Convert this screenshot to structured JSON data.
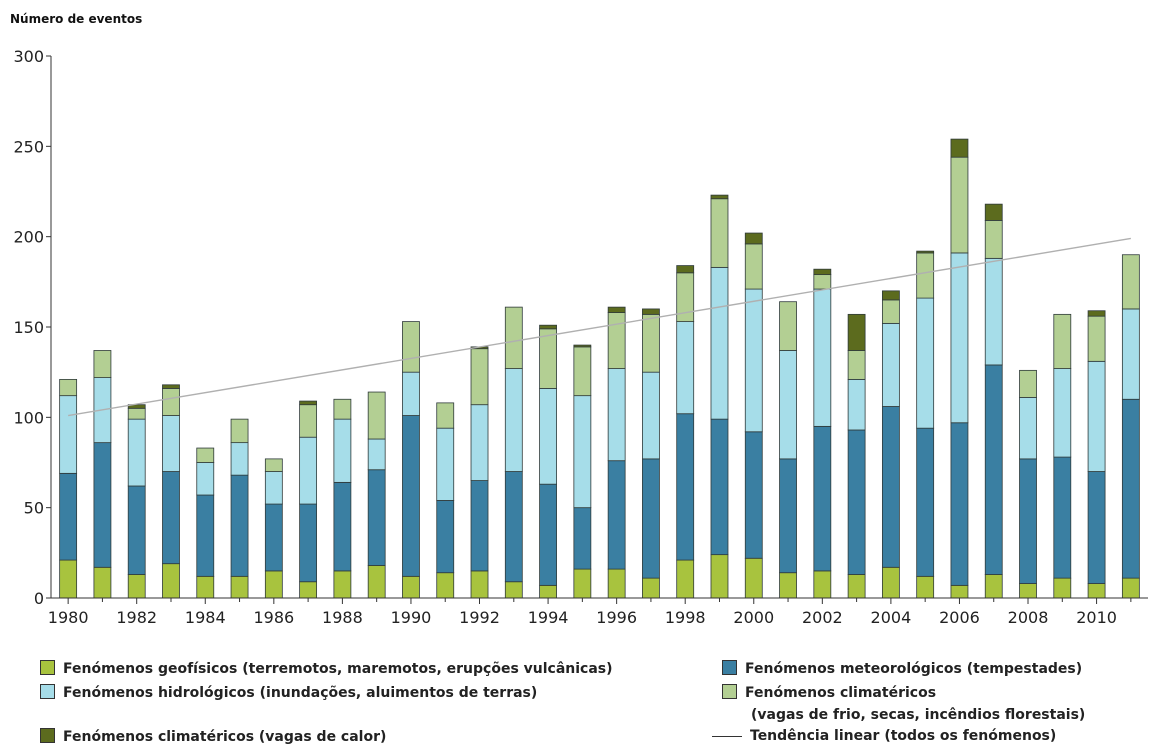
{
  "chart_data": {
    "type": "bar",
    "stacked": true,
    "title": "Número de eventos",
    "ylim": [
      0,
      300
    ],
    "yticks": [
      "0",
      "50",
      "100",
      "150",
      "200",
      "250",
      "300"
    ],
    "categories": [
      "1980",
      "1981",
      "1982",
      "1983",
      "1984",
      "1985",
      "1986",
      "1987",
      "1988",
      "1989",
      "1990",
      "1991",
      "1992",
      "1993",
      "1994",
      "1995",
      "1996",
      "1997",
      "1998",
      "1999",
      "2000",
      "2001",
      "2002",
      "2003",
      "2004",
      "2005",
      "2006",
      "2007",
      "2008",
      "2009",
      "2010",
      "2011"
    ],
    "xtick_labels": [
      "1980",
      "",
      "1982",
      "",
      "1984",
      "",
      "1986",
      "",
      "1988",
      "",
      "1990",
      "",
      "1992",
      "",
      "1994",
      "",
      "1996",
      "",
      "1998",
      "",
      "2000",
      "",
      "2002",
      "",
      "2004",
      "",
      "2006",
      "",
      "2008",
      "",
      "2010",
      ""
    ],
    "series": [
      {
        "name": "Fenómenos geofísicos (terremotos, maremotos, erupções vulcânicas)",
        "color": "#a8c33e",
        "values": [
          21,
          17,
          13,
          19,
          12,
          12,
          15,
          9,
          15,
          18,
          12,
          14,
          15,
          9,
          7,
          16,
          16,
          11,
          21,
          24,
          22,
          14,
          15,
          13,
          17,
          12,
          7,
          13,
          8,
          11,
          8,
          11
        ]
      },
      {
        "name": "Fenómenos meteorológicos (tempestades)",
        "color": "#3a7fa2",
        "values": [
          48,
          69,
          49,
          51,
          45,
          56,
          37,
          43,
          49,
          53,
          89,
          40,
          50,
          61,
          56,
          34,
          60,
          66,
          81,
          75,
          70,
          63,
          80,
          80,
          89,
          82,
          90,
          116,
          69,
          67,
          62,
          99
        ]
      },
      {
        "name": "Fenómenos hidrológicos (inundações, aluimentos de terras)",
        "color": "#a6dde9",
        "values": [
          43,
          36,
          37,
          31,
          18,
          18,
          18,
          37,
          35,
          17,
          24,
          40,
          42,
          57,
          53,
          62,
          51,
          48,
          51,
          84,
          79,
          60,
          76,
          28,
          46,
          72,
          94,
          59,
          34,
          49,
          61,
          50
        ]
      },
      {
        "name": "Fenómenos climatéricos (vagas de frio, secas, incêndios florestais)",
        "color": "#b3cf93",
        "values": [
          9,
          15,
          6,
          15,
          8,
          13,
          7,
          18,
          11,
          26,
          28,
          14,
          31,
          34,
          33,
          27,
          31,
          32,
          27,
          38,
          25,
          27,
          8,
          16,
          13,
          25,
          53,
          21,
          15,
          30,
          25,
          30
        ]
      },
      {
        "name": "Fenómenos climatéricos (vagas de calor)",
        "color": "#5c6b1e",
        "values": [
          0,
          0,
          2,
          2,
          0,
          0,
          0,
          2,
          0,
          0,
          0,
          0,
          1,
          0,
          2,
          1,
          3,
          3,
          4,
          2,
          6,
          0,
          3,
          20,
          5,
          1,
          10,
          9,
          0,
          0,
          3,
          0
        ]
      }
    ],
    "trend": {
      "name": "Tendência linear (todos os fenómenos)",
      "color": "#b0b0b0",
      "x": [
        "1980",
        "2011"
      ],
      "y": [
        101,
        199
      ]
    }
  },
  "legend": {
    "geo": "Fenómenos geofísicos (terremotos, maremotos, erupções vulcânicas)",
    "meteo": "Fenómenos meteorológicos (tempestades)",
    "hidro": "Fenómenos hidrológicos (inundações, aluimentos de terras)",
    "clim1": "Fenómenos climatéricos",
    "clim2": "(vagas de frio, secas, incêndios florestais)",
    "calor": "Fenómenos climatéricos (vagas de calor)",
    "trend": "Tendência linear (todos os fenómenos)"
  }
}
